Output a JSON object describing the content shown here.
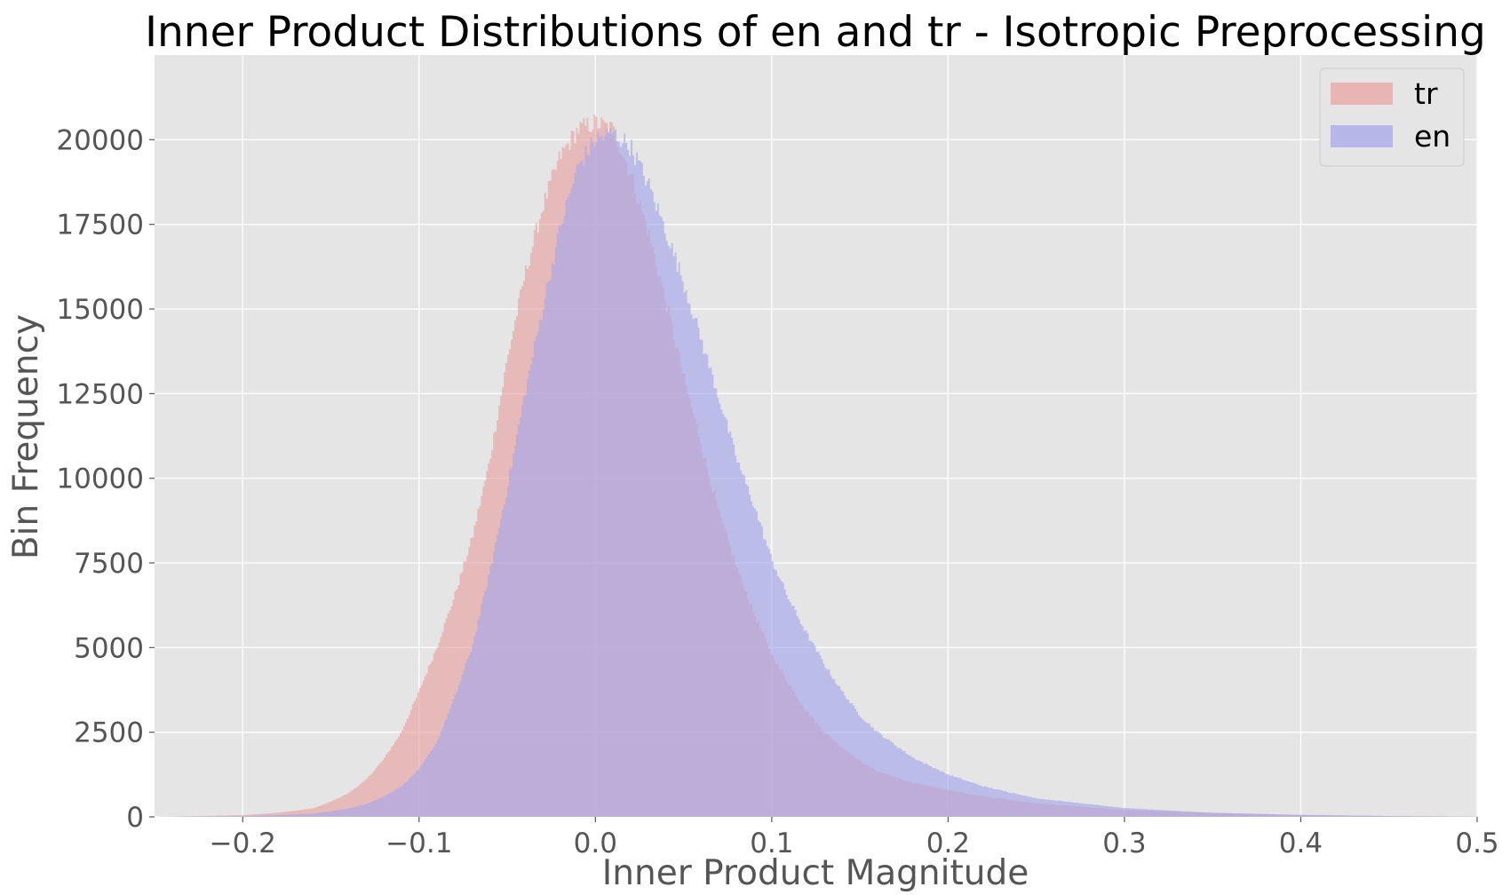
{
  "chart_data": {
    "type": "bar",
    "subtype": "overlapping-histogram",
    "title": "Inner Product Distributions of en and tr - Isotropic Preprocessing",
    "xlabel": "Inner Product Magnitude",
    "ylabel": "Bin Frequency",
    "xlim": [
      -0.25,
      0.5
    ],
    "ylim": [
      0,
      22500
    ],
    "xticks": [
      -0.2,
      -0.1,
      0.0,
      0.1,
      0.2,
      0.3,
      0.4,
      0.5
    ],
    "xtick_labels": [
      "−0.2",
      "−0.1",
      "0.0",
      "0.1",
      "0.2",
      "0.3",
      "0.4",
      "0.5"
    ],
    "yticks": [
      0,
      2500,
      5000,
      7500,
      10000,
      12500,
      15000,
      17500,
      20000
    ],
    "ytick_labels": [
      "0",
      "2500",
      "5000",
      "7500",
      "10000",
      "12500",
      "15000",
      "17500",
      "20000"
    ],
    "grid": true,
    "legend_position": "top-right",
    "background": "#e5e5e5",
    "series": [
      {
        "name": "tr",
        "color": "#e8a3a3",
        "opacity": 0.65,
        "x": [
          -0.25,
          -0.2,
          -0.18,
          -0.16,
          -0.15,
          -0.14,
          -0.13,
          -0.12,
          -0.11,
          -0.1,
          -0.09,
          -0.08,
          -0.07,
          -0.06,
          -0.05,
          -0.04,
          -0.03,
          -0.02,
          -0.01,
          0.0,
          0.01,
          0.02,
          0.03,
          0.04,
          0.05,
          0.06,
          0.07,
          0.08,
          0.09,
          0.1,
          0.11,
          0.12,
          0.13,
          0.14,
          0.15,
          0.16,
          0.18,
          0.2,
          0.22,
          0.25,
          0.3,
          0.35,
          0.4,
          0.45,
          0.5
        ],
        "values": [
          0,
          50,
          120,
          250,
          450,
          700,
          1100,
          1700,
          2500,
          3700,
          5000,
          6500,
          8200,
          10500,
          13500,
          16000,
          18000,
          19500,
          20300,
          20500,
          20300,
          19000,
          17300,
          15200,
          13000,
          11000,
          9000,
          7400,
          6000,
          4800,
          3900,
          3100,
          2500,
          2050,
          1650,
          1350,
          1000,
          800,
          600,
          400,
          200,
          120,
          60,
          25,
          10
        ]
      },
      {
        "name": "en",
        "color": "#a6a6ea",
        "opacity": 0.65,
        "x": [
          -0.25,
          -0.2,
          -0.18,
          -0.16,
          -0.15,
          -0.14,
          -0.13,
          -0.12,
          -0.11,
          -0.1,
          -0.09,
          -0.08,
          -0.07,
          -0.06,
          -0.05,
          -0.04,
          -0.03,
          -0.02,
          -0.01,
          0.0,
          0.01,
          0.02,
          0.03,
          0.04,
          0.05,
          0.06,
          0.07,
          0.08,
          0.09,
          0.1,
          0.11,
          0.12,
          0.13,
          0.14,
          0.15,
          0.16,
          0.18,
          0.2,
          0.22,
          0.25,
          0.3,
          0.35,
          0.4,
          0.45,
          0.5
        ],
        "values": [
          0,
          20,
          50,
          100,
          160,
          250,
          380,
          600,
          900,
          1400,
          2200,
          3500,
          5000,
          7200,
          9700,
          12500,
          15000,
          17400,
          19200,
          20000,
          20200,
          19800,
          18700,
          17300,
          15800,
          14100,
          12400,
          10600,
          9200,
          7600,
          6400,
          5400,
          4500,
          3700,
          3000,
          2500,
          1750,
          1250,
          900,
          550,
          260,
          120,
          55,
          25,
          10
        ]
      }
    ]
  }
}
